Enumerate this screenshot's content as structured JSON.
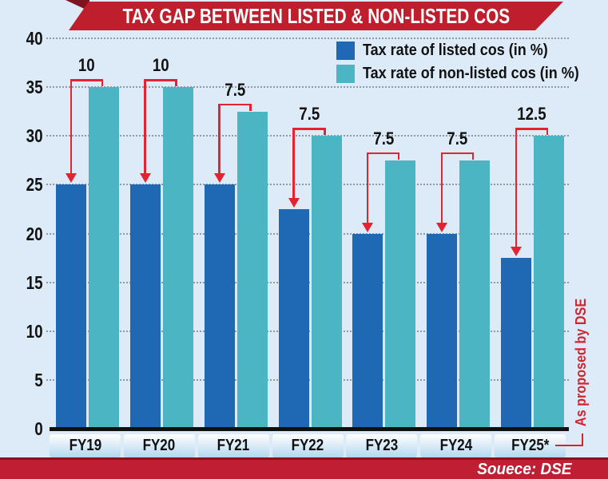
{
  "title": "TAX GAP BETWEEN LISTED & NON-LISTED COS",
  "chart_data": {
    "type": "bar",
    "categories": [
      "FY19",
      "FY20",
      "FY21",
      "FY22",
      "FY23",
      "FY24",
      "FY25*"
    ],
    "series": [
      {
        "name": "Tax rate of listed cos (in %)",
        "color": "#1f68b3",
        "values": [
          25,
          25,
          25,
          22.5,
          20,
          20,
          17.5
        ]
      },
      {
        "name": "Tax rate of non-listed cos (in %)",
        "color": "#4cb5c3",
        "values": [
          35,
          35,
          32.5,
          30,
          27.5,
          27.5,
          30
        ]
      }
    ],
    "gap_labels": [
      "10",
      "10",
      "7.5",
      "7.5",
      "7.5",
      "7.5",
      "12.5"
    ],
    "ylim": [
      0,
      40
    ],
    "yticks": [
      0,
      5,
      10,
      15,
      20,
      25,
      30,
      35,
      40
    ],
    "grid": "horizontal-dotted",
    "legend_position": "top-right",
    "title": "TAX GAP BETWEEN LISTED & NON-LISTED COS"
  },
  "annotation_right": "As proposed by DSE",
  "footer": {
    "source": "Souece: DSE"
  },
  "colors": {
    "background": "#dcebf7",
    "banner": "#bf1e2d",
    "banner_fold": "#7d141f",
    "footer_bg": "#c01f33",
    "arrow_red": "#e52330",
    "annotation_red": "#d42430",
    "axis": "#111111",
    "grid": "#8f9aa3"
  }
}
